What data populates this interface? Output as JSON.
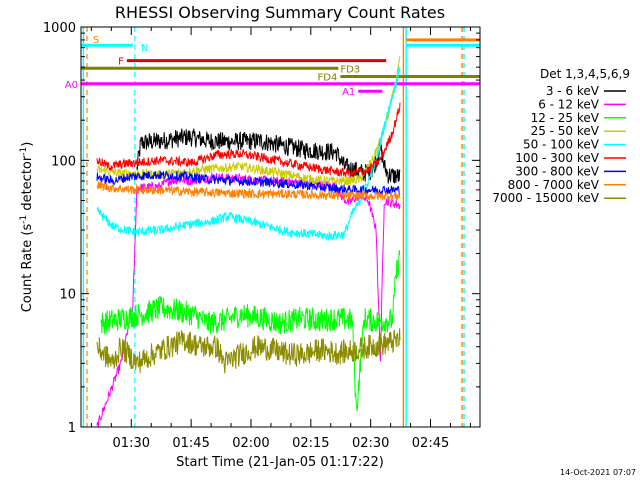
{
  "chart_data": {
    "type": "line",
    "title": "RHESSI Observing Summary Count Rates",
    "xlabel": "Start Time (21-Jan-05 01:17:22)",
    "ylabel_prefix": "Count Rate (s",
    "ylabel_sup": "-1",
    "ylabel_suffix": " detector",
    "ylabel_close": ")",
    "yscale": "log",
    "ylim": [
      1,
      1000
    ],
    "xlim_minutes": [
      0,
      100
    ],
    "yticks": [
      {
        "value": 1,
        "label": "1"
      },
      {
        "value": 10,
        "label": "10"
      },
      {
        "value": 100,
        "label": "100"
      },
      {
        "value": 1000,
        "label": "1000"
      }
    ],
    "xticks": [
      {
        "t": 12.6,
        "label": "01:30"
      },
      {
        "t": 27.6,
        "label": "01:45"
      },
      {
        "t": 42.6,
        "label": "02:00"
      },
      {
        "t": 57.6,
        "label": "02:15"
      },
      {
        "t": 72.6,
        "label": "02:30"
      },
      {
        "t": 87.6,
        "label": "02:45"
      }
    ],
    "legend_title": "Det 1,3,4,5,6,9",
    "legend_position": "right",
    "series": [
      {
        "name": "3 - 6 keV",
        "color": "#000000",
        "points": [
          [
            14,
            85
          ],
          [
            15,
            135
          ],
          [
            20,
            140
          ],
          [
            27,
            150
          ],
          [
            32,
            140
          ],
          [
            38,
            138
          ],
          [
            45,
            140
          ],
          [
            50,
            130
          ],
          [
            56,
            120
          ],
          [
            64,
            115
          ],
          [
            66,
            90
          ],
          [
            71,
            80
          ],
          [
            73,
            85
          ],
          [
            74,
            100
          ],
          [
            75,
            130
          ],
          [
            76,
            90
          ],
          [
            77,
            78
          ],
          [
            80,
            75
          ]
        ]
      },
      {
        "name": "6 - 12 keV",
        "color": "#ff00ff",
        "points": [
          [
            4,
            1
          ],
          [
            10,
            3
          ],
          [
            13,
            8
          ],
          [
            14,
            62
          ],
          [
            20,
            64
          ],
          [
            22,
            70
          ],
          [
            25,
            72
          ],
          [
            27,
            70
          ],
          [
            33,
            75
          ],
          [
            40,
            73
          ],
          [
            48,
            70
          ],
          [
            55,
            68
          ],
          [
            60,
            66
          ],
          [
            64,
            64
          ],
          [
            65,
            55
          ],
          [
            67,
            48
          ],
          [
            70,
            55
          ],
          [
            72,
            50
          ],
          [
            74,
            30
          ],
          [
            75,
            3
          ],
          [
            76,
            50
          ],
          [
            80,
            46
          ]
        ]
      },
      {
        "name": "12 - 25 keV",
        "color": "#00ff00",
        "points": [
          [
            5,
            6
          ],
          [
            10,
            6.5
          ],
          [
            15,
            7
          ],
          [
            20,
            7.8
          ],
          [
            24,
            7.5
          ],
          [
            28,
            7
          ],
          [
            32,
            6
          ],
          [
            36,
            6.3
          ],
          [
            40,
            7
          ],
          [
            46,
            6.5
          ],
          [
            50,
            6
          ],
          [
            55,
            6.5
          ],
          [
            60,
            6.3
          ],
          [
            64,
            6.5
          ],
          [
            68,
            6.3
          ],
          [
            69,
            1.3
          ],
          [
            71,
            6.5
          ],
          [
            74,
            6.2
          ],
          [
            78,
            6.3
          ],
          [
            79,
            14
          ],
          [
            80,
            20
          ]
        ]
      },
      {
        "name": "25 - 50 keV",
        "color": "#cccc00",
        "points": [
          [
            4,
            85
          ],
          [
            10,
            80
          ],
          [
            20,
            78
          ],
          [
            30,
            85
          ],
          [
            40,
            90
          ],
          [
            50,
            80
          ],
          [
            58,
            72
          ],
          [
            62,
            70
          ],
          [
            66,
            70
          ],
          [
            70,
            72
          ],
          [
            73,
            100
          ],
          [
            75,
            140
          ],
          [
            77,
            220
          ],
          [
            79,
            400
          ],
          [
            80,
            580
          ]
        ]
      },
      {
        "name": "50 - 100 keV",
        "color": "#00ffff",
        "points": [
          [
            4,
            42
          ],
          [
            8,
            32
          ],
          [
            13,
            29
          ],
          [
            20,
            30
          ],
          [
            27,
            33
          ],
          [
            33,
            35
          ],
          [
            37,
            38
          ],
          [
            42,
            35
          ],
          [
            47,
            32
          ],
          [
            52,
            29
          ],
          [
            58,
            28
          ],
          [
            62,
            27
          ],
          [
            66,
            28
          ],
          [
            68,
            40
          ],
          [
            70,
            50
          ],
          [
            72,
            70
          ],
          [
            74,
            100
          ],
          [
            76,
            180
          ],
          [
            78,
            300
          ],
          [
            80,
            500
          ]
        ]
      },
      {
        "name": "100 - 300 keV",
        "color": "#ff0000",
        "points": [
          [
            4,
            100
          ],
          [
            7,
            90
          ],
          [
            12,
            95
          ],
          [
            20,
            100
          ],
          [
            28,
            96
          ],
          [
            34,
            110
          ],
          [
            40,
            112
          ],
          [
            46,
            104
          ],
          [
            52,
            95
          ],
          [
            58,
            88
          ],
          [
            64,
            82
          ],
          [
            68,
            80
          ],
          [
            72,
            84
          ],
          [
            75,
            100
          ],
          [
            78,
            160
          ],
          [
            80,
            260
          ]
        ]
      },
      {
        "name": "300 - 800 keV",
        "color": "#0000ff",
        "points": [
          [
            4,
            75
          ],
          [
            8,
            70
          ],
          [
            12,
            75
          ],
          [
            18,
            78
          ],
          [
            26,
            76
          ],
          [
            32,
            72
          ],
          [
            40,
            70
          ],
          [
            48,
            68
          ],
          [
            56,
            65
          ],
          [
            62,
            62
          ],
          [
            68,
            60
          ],
          [
            72,
            60
          ],
          [
            76,
            60
          ],
          [
            80,
            60
          ]
        ]
      },
      {
        "name": "800 - 7000 keV",
        "color": "#ff8000",
        "points": [
          [
            4,
            65
          ],
          [
            8,
            62
          ],
          [
            14,
            60
          ],
          [
            20,
            60
          ],
          [
            28,
            58
          ],
          [
            36,
            57
          ],
          [
            44,
            56
          ],
          [
            52,
            56
          ],
          [
            60,
            55
          ],
          [
            66,
            54
          ],
          [
            72,
            54
          ],
          [
            76,
            54
          ],
          [
            80,
            54
          ]
        ]
      },
      {
        "name": "7000 - 15000 keV",
        "color": "#8c8c00",
        "points": [
          [
            4,
            4
          ],
          [
            8,
            3
          ],
          [
            10,
            4
          ],
          [
            14,
            3
          ],
          [
            18,
            3.5
          ],
          [
            22,
            4
          ],
          [
            26,
            4.5
          ],
          [
            30,
            4
          ],
          [
            34,
            4
          ],
          [
            36,
            3
          ],
          [
            40,
            3.5
          ],
          [
            44,
            4
          ],
          [
            48,
            3.8
          ],
          [
            52,
            3.5
          ],
          [
            56,
            3.5
          ],
          [
            60,
            3.8
          ],
          [
            64,
            3.6
          ],
          [
            68,
            3.7
          ],
          [
            72,
            4
          ],
          [
            76,
            4.2
          ],
          [
            80,
            4.5
          ]
        ]
      }
    ],
    "bars": [
      {
        "label": "F",
        "label_side": "left",
        "color": "#dd0000",
        "t_start": 11.5,
        "t_end": 76.5,
        "y": 560
      },
      {
        "label": "FD3",
        "label_side": "right",
        "color": "#808000",
        "t_start": 0,
        "t_end": 64.5,
        "y": 490
      },
      {
        "label": "FD4",
        "label_side": "left",
        "color": "#808000",
        "t_start": 65,
        "t_end": 100,
        "y": 425
      },
      {
        "label": "A0",
        "label_side": "left",
        "color": "#ff00ff",
        "t_start": 0,
        "t_end": 100,
        "y": 375
      },
      {
        "label": "A1",
        "label_side": "left",
        "color": "#ff00ff",
        "t_start": 69.5,
        "t_end": 75.5,
        "y": 330
      },
      {
        "label": "",
        "label_side": "none",
        "color": "#00ffff",
        "t_start": 0,
        "t_end": 13,
        "y": 730
      },
      {
        "label": "",
        "label_side": "none",
        "color": "#00ffff",
        "t_start": 81.5,
        "t_end": 100,
        "y": 730
      },
      {
        "label": "",
        "label_side": "none",
        "color": "#ff8000",
        "t_start": 81.5,
        "t_end": 100,
        "y": 800
      }
    ],
    "markers": [
      {
        "label": "S",
        "color": "#ff8000",
        "t": 1.5,
        "style": "dash"
      },
      {
        "label": "N",
        "color": "#00ffff",
        "t": 13.5,
        "style": "dash"
      }
    ],
    "vlines": [
      {
        "color": "#ff8000",
        "t": 95.5,
        "style": "dash"
      },
      {
        "color": "#00ffff",
        "t": 96,
        "style": "dash"
      },
      {
        "color": "#00ffff",
        "t": 0.6,
        "style": "solid"
      },
      {
        "color": "#00ffff",
        "t": 81.5,
        "style": "solid"
      },
      {
        "color": "#ff8000",
        "t": 80.8,
        "style": "solid"
      }
    ]
  },
  "footer_timestamp": "14-Oct-2021 07:07"
}
